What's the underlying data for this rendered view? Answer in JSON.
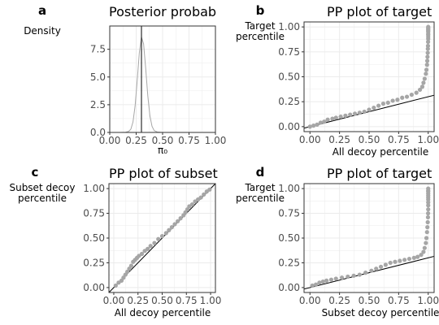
{
  "colors": {
    "points": "#a6a6a6",
    "density": "#a6a6a6",
    "line": "#000000",
    "grid": "#ebebeb",
    "frame": "#333333",
    "tick_text": "#4d4d4d"
  },
  "chart_data": [
    {
      "id": "a",
      "type": "line",
      "panel_letter": "a",
      "title": "Posterior probab",
      "xlabel": "π₀",
      "ylabel": [
        "Density"
      ],
      "xlim": [
        0,
        1
      ],
      "ylim": [
        0,
        9.6
      ],
      "xticks": [
        0,
        0.25,
        0.5,
        0.75,
        1
      ],
      "xtick_labels": [
        "0.00",
        "0.25",
        "0.50",
        "0.75",
        "1.00"
      ],
      "yticks": [
        0,
        2.5,
        5,
        7.5
      ],
      "ytick_labels": [
        "0.0",
        "2.5",
        "5.0",
        "7.5"
      ],
      "grid": true,
      "series": [
        {
          "style": "density",
          "x": [
            0,
            0.1,
            0.15,
            0.18,
            0.2,
            0.22,
            0.24,
            0.26,
            0.28,
            0.3,
            0.32,
            0.34,
            0.36,
            0.38,
            0.4,
            0.42,
            0.45,
            0.5,
            0.6,
            0.8,
            1
          ],
          "y": [
            0,
            0,
            0.02,
            0.1,
            0.3,
            0.95,
            2.4,
            4.7,
            7.2,
            8.6,
            8.0,
            5.8,
            3.3,
            1.5,
            0.55,
            0.17,
            0.04,
            0,
            0,
            0,
            0
          ]
        }
      ],
      "vlines": [
        0.3
      ]
    },
    {
      "id": "b",
      "type": "scatter",
      "panel_letter": "b",
      "title": "PP plot of target",
      "xlabel": "All decoy percentile",
      "ylabel": [
        "Target",
        "percentile"
      ],
      "xlim": [
        -0.05,
        1.05
      ],
      "ylim": [
        -0.05,
        1.05
      ],
      "xticks": [
        0,
        0.25,
        0.5,
        0.75,
        1
      ],
      "xtick_labels": [
        "0.00",
        "0.25",
        "0.50",
        "0.75",
        "1.00"
      ],
      "yticks": [
        0,
        0.25,
        0.5,
        0.75,
        1
      ],
      "ytick_labels": [
        "0.00",
        "0.25",
        "0.50",
        "0.75",
        "1.00"
      ],
      "grid": true,
      "reference_line": {
        "slope": 0.3,
        "intercept": 0
      },
      "series": [
        {
          "x": [
            0.0,
            0.03,
            0.06,
            0.09,
            0.12,
            0.15,
            0.19,
            0.22,
            0.26,
            0.3,
            0.34,
            0.38,
            0.42,
            0.46,
            0.5,
            0.54,
            0.58,
            0.62,
            0.66,
            0.7,
            0.74,
            0.78,
            0.82,
            0.86,
            0.9,
            0.93,
            0.95,
            0.96,
            0.97,
            0.98,
            0.985,
            0.99,
            0.992,
            0.994,
            0.996,
            0.997,
            0.998,
            0.999,
            1.0,
            1.0,
            1.0,
            1.0,
            1.0,
            1.0,
            1.0,
            1.0,
            1.0,
            1.0
          ],
          "y": [
            0.0,
            0.01,
            0.02,
            0.04,
            0.05,
            0.07,
            0.08,
            0.09,
            0.1,
            0.11,
            0.12,
            0.13,
            0.14,
            0.15,
            0.17,
            0.19,
            0.21,
            0.23,
            0.24,
            0.26,
            0.27,
            0.29,
            0.3,
            0.32,
            0.34,
            0.37,
            0.4,
            0.44,
            0.48,
            0.53,
            0.57,
            0.62,
            0.66,
            0.7,
            0.74,
            0.78,
            0.81,
            0.85,
            0.88,
            0.9,
            0.92,
            0.93,
            0.95,
            0.96,
            0.97,
            0.98,
            0.99,
            1.0
          ]
        }
      ]
    },
    {
      "id": "c",
      "type": "scatter",
      "panel_letter": "c",
      "title": "PP plot of subset",
      "xlabel": "All decoy percentile",
      "ylabel": [
        "Subset decoy",
        "percentile"
      ],
      "xlim": [
        -0.05,
        1.05
      ],
      "ylim": [
        -0.05,
        1.05
      ],
      "xticks": [
        0,
        0.25,
        0.5,
        0.75,
        1
      ],
      "xtick_labels": [
        "0.00",
        "0.25",
        "0.50",
        "0.75",
        "1.00"
      ],
      "yticks": [
        0,
        0.25,
        0.5,
        0.75,
        1
      ],
      "ytick_labels": [
        "0.00",
        "0.25",
        "0.50",
        "0.75",
        "1.00"
      ],
      "grid": true,
      "reference_line": {
        "slope": 1,
        "intercept": 0
      },
      "series": [
        {
          "x": [
            0.02,
            0.05,
            0.08,
            0.1,
            0.12,
            0.14,
            0.16,
            0.18,
            0.2,
            0.22,
            0.24,
            0.26,
            0.29,
            0.32,
            0.35,
            0.38,
            0.42,
            0.46,
            0.5,
            0.54,
            0.57,
            0.6,
            0.63,
            0.66,
            0.69,
            0.72,
            0.74,
            0.76,
            0.78,
            0.81,
            0.84,
            0.87,
            0.9,
            0.93,
            0.96,
            0.99
          ],
          "y": [
            0.02,
            0.05,
            0.07,
            0.1,
            0.13,
            0.16,
            0.19,
            0.22,
            0.26,
            0.28,
            0.3,
            0.32,
            0.34,
            0.37,
            0.39,
            0.42,
            0.45,
            0.49,
            0.52,
            0.55,
            0.58,
            0.61,
            0.64,
            0.67,
            0.7,
            0.73,
            0.76,
            0.79,
            0.82,
            0.84,
            0.87,
            0.89,
            0.91,
            0.94,
            0.97,
            0.99
          ]
        }
      ]
    },
    {
      "id": "d",
      "type": "scatter",
      "panel_letter": "d",
      "title": "PP plot of target",
      "xlabel": "Subset decoy percentile",
      "ylabel": [
        "Target",
        "percentile"
      ],
      "xlim": [
        -0.05,
        1.05
      ],
      "ylim": [
        -0.05,
        1.05
      ],
      "xticks": [
        0,
        0.25,
        0.5,
        0.75,
        1
      ],
      "xtick_labels": [
        "0.00",
        "0.25",
        "0.50",
        "0.75",
        "1.00"
      ],
      "yticks": [
        0,
        0.25,
        0.5,
        0.75,
        1
      ],
      "ytick_labels": [
        "0.00",
        "0.25",
        "0.50",
        "0.75",
        "1.00"
      ],
      "grid": true,
      "reference_line": {
        "slope": 0.3,
        "intercept": 0
      },
      "series": [
        {
          "x": [
            0.02,
            0.05,
            0.08,
            0.11,
            0.14,
            0.18,
            0.22,
            0.27,
            0.32,
            0.37,
            0.42,
            0.47,
            0.52,
            0.56,
            0.6,
            0.64,
            0.68,
            0.72,
            0.76,
            0.8,
            0.84,
            0.88,
            0.91,
            0.94,
            0.96,
            0.97,
            0.98,
            0.985,
            0.99,
            0.993,
            0.996,
            0.998,
            0.999,
            1.0,
            1.0,
            1.0,
            1.0,
            1.0,
            1.0,
            1.0,
            1.0,
            1.0,
            1.0
          ],
          "y": [
            0.02,
            0.03,
            0.05,
            0.06,
            0.07,
            0.08,
            0.09,
            0.1,
            0.11,
            0.12,
            0.13,
            0.15,
            0.17,
            0.19,
            0.21,
            0.23,
            0.25,
            0.26,
            0.27,
            0.28,
            0.29,
            0.3,
            0.31,
            0.33,
            0.36,
            0.4,
            0.45,
            0.5,
            0.56,
            0.61,
            0.66,
            0.71,
            0.75,
            0.79,
            0.83,
            0.86,
            0.89,
            0.91,
            0.93,
            0.95,
            0.97,
            0.98,
            1.0
          ]
        }
      ]
    }
  ]
}
